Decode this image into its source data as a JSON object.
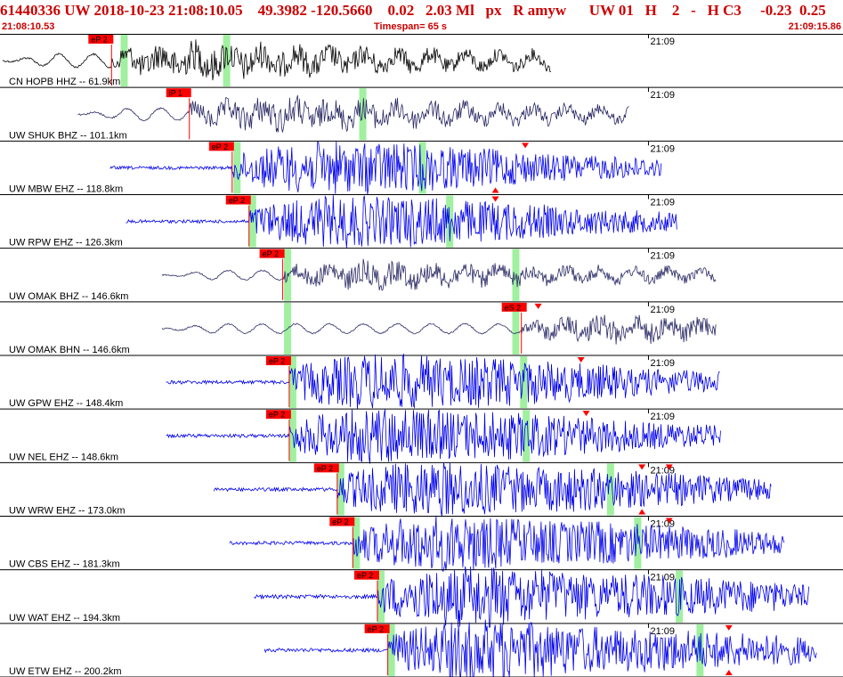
{
  "header": {
    "title": "61440336 UW 2018-10-23 21:08:10.05    49.3982 -120.5660    0.02   2.03 Ml   px   R amyw      UW 01   H    2   -   H C3     -0.23  0.25",
    "start_time": "21:08:10.53",
    "timespan": "Timespan=  65 s",
    "end_time": "21:09:15.86"
  },
  "colors": {
    "pick_flag": "#ff0000",
    "phase_window": "#a0f0a0",
    "broadband_trace": "#000000",
    "bh_trace": "#2a2a66",
    "short_period_trace": "#0000ee",
    "divider": "#000000"
  },
  "time_axis": {
    "start_sec": 0,
    "span_sec": 65,
    "minute_mark_label": "21:09",
    "minute_mark_sec": 50
  },
  "traces": [
    {
      "label": "CN HOPB HHZ -- 61.9km",
      "pick": "eP 2",
      "pick_sec": 8.6,
      "windows_sec": [
        9.3,
        17.2
      ],
      "color_role": "broadband",
      "signal_start_sec": 0.2,
      "signal_end_sec": 42.5,
      "amp": 0.55,
      "arrivals_sec": []
    },
    {
      "label": "UW SHUK BHZ -- 101.1km",
      "pick": "iP 1",
      "pick_sec": 14.6,
      "windows_sec": [
        27.7
      ],
      "color_role": "bh",
      "signal_start_sec": 6.0,
      "signal_end_sec": 48.5,
      "amp": 0.5,
      "arrivals_sec": []
    },
    {
      "label": "UW MBW EHZ -- 118.8km",
      "pick": "eP 2",
      "pick_sec": 17.9,
      "windows_sec": [
        18.0,
        32.3
      ],
      "color_role": "sp",
      "signal_start_sec": 8.5,
      "signal_end_sec": 51.0,
      "amp": 0.5,
      "arrivals_sec": [
        40.5,
        38.2
      ]
    },
    {
      "label": "UW RPW EHZ -- 126.3km",
      "pick": "eP 2",
      "pick_sec": 19.2,
      "windows_sec": [
        19.2,
        34.4
      ],
      "color_role": "sp",
      "signal_start_sec": 9.7,
      "signal_end_sec": 52.2,
      "amp": 0.5,
      "arrivals_sec": [
        38.2
      ]
    },
    {
      "label": "UW OMAK BHZ -- 146.6km",
      "pick": "eP 2",
      "pick_sec": 21.8,
      "windows_sec": [
        21.9,
        39.5
      ],
      "color_role": "bh",
      "signal_start_sec": 12.5,
      "signal_end_sec": 55.2,
      "amp": 0.4,
      "arrivals_sec": []
    },
    {
      "label": "UW OMAK BHN -- 146.6km",
      "pick": "eS 2",
      "pick_sec": 40.2,
      "windows_sec": [
        21.9,
        39.5
      ],
      "color_role": "bh",
      "signal_start_sec": 12.5,
      "signal_end_sec": 55.2,
      "amp": 0.4,
      "arrivals_sec": [
        41.5
      ]
    },
    {
      "label": "UW GPW EHZ -- 148.4km",
      "pick": "eP 2",
      "pick_sec": 22.3,
      "windows_sec": [
        22.3,
        40.1
      ],
      "color_role": "sp",
      "signal_start_sec": 12.8,
      "signal_end_sec": 55.5,
      "amp": 0.55,
      "arrivals_sec": [
        44.8
      ]
    },
    {
      "label": "UW NEL EHZ -- 148.6km",
      "pick": "eP 2",
      "pick_sec": 22.3,
      "windows_sec": [
        22.3,
        40.3
      ],
      "color_role": "sp",
      "signal_start_sec": 12.8,
      "signal_end_sec": 55.6,
      "amp": 0.55,
      "arrivals_sec": [
        45.2
      ]
    },
    {
      "label": "UW WRW EHZ -- 173.0km",
      "pick": "eP 2",
      "pick_sec": 26.0,
      "windows_sec": [
        26.0,
        46.8
      ],
      "color_role": "sp",
      "signal_start_sec": 16.5,
      "signal_end_sec": 59.5,
      "amp": 0.55,
      "arrivals_sec": [
        49.5,
        49.5,
        51.6
      ]
    },
    {
      "label": "UW CBS EHZ -- 181.3km",
      "pick": "eP 2",
      "pick_sec": 27.2,
      "windows_sec": [
        27.2,
        48.9
      ],
      "color_role": "sp",
      "signal_start_sec": 17.7,
      "signal_end_sec": 60.5,
      "amp": 0.55,
      "arrivals_sec": [
        51.6
      ]
    },
    {
      "label": "UW WAT EHZ -- 194.3km",
      "pick": "eP 2",
      "pick_sec": 29.1,
      "windows_sec": [
        29.1,
        52.1
      ],
      "color_role": "sp",
      "signal_start_sec": 19.6,
      "signal_end_sec": 62.4,
      "amp": 0.6,
      "arrivals_sec": []
    },
    {
      "label": "UW ETW EHZ -- 200.2km",
      "pick": "eP 2",
      "pick_sec": 29.9,
      "windows_sec": [
        29.9,
        53.7
      ],
      "color_role": "sp",
      "signal_start_sec": 20.4,
      "signal_end_sec": 63.0,
      "amp": 0.6,
      "arrivals_sec": [
        56.2,
        56.2
      ]
    }
  ]
}
